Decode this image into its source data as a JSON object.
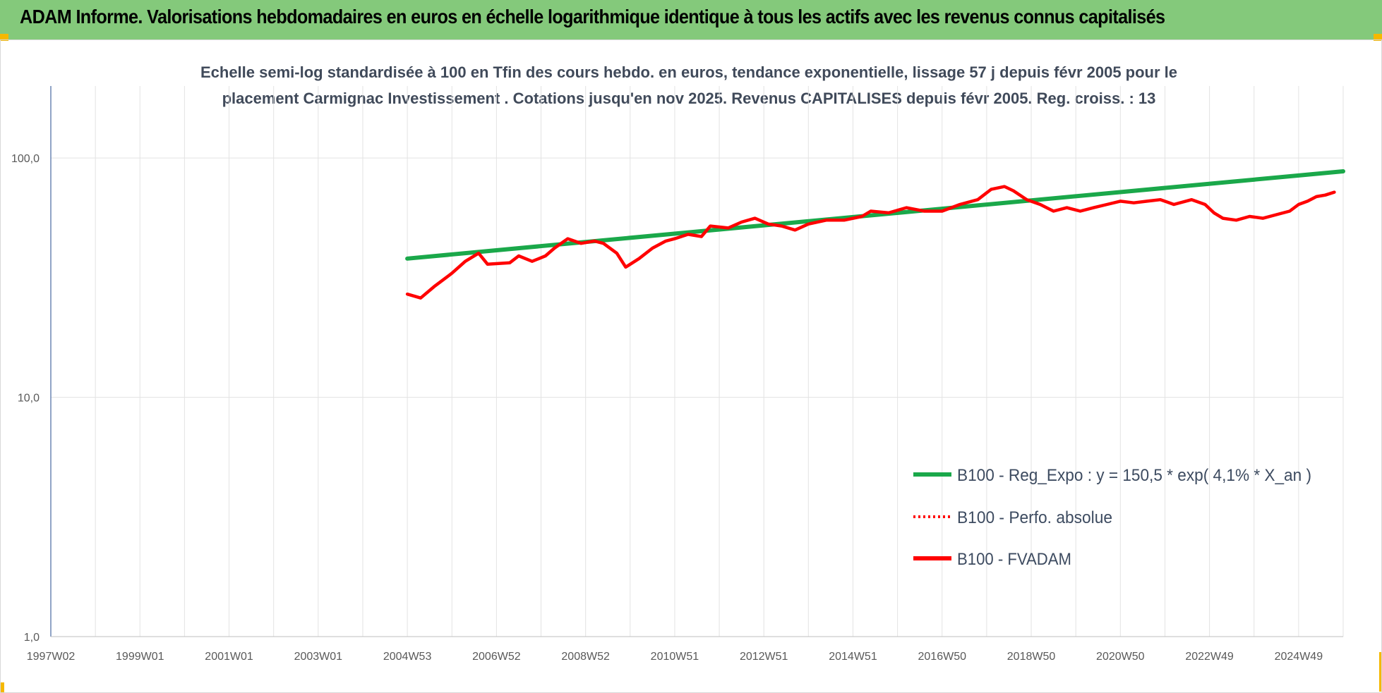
{
  "header": {
    "title": "ADAM Informe. Valorisations hebdomadaires en euros en échelle logarithmique identique à tous les actifs avec les revenus connus capitalisés"
  },
  "colors": {
    "banner": "#84c97b",
    "accent_corner": "#f5b800",
    "regression": "#1aa84a",
    "series": "#ff0000"
  },
  "chart_data": {
    "type": "line",
    "title_lines": [
      "Echelle semi-log standardisée à 100 en Tfin des cours hebdo. en euros, tendance exponentielle, lissage 57 j depuis févr 2005 pour le",
      "placement Carmignac Investissement . Cotations jusqu'en nov 2025. Revenus CAPITALISES depuis févr 2005. Reg. croiss. : 13"
    ],
    "y_scale": "log",
    "ylim": [
      1,
      200
    ],
    "y_ticks": [
      "1,0",
      "10,0",
      "100,0"
    ],
    "xlim": [
      1997.0,
      2026.0
    ],
    "x_ticks": [
      {
        "label": "1997W02",
        "year": 1997.0
      },
      {
        "label": "1999W01",
        "year": 1999.0
      },
      {
        "label": "2001W01",
        "year": 2001.0
      },
      {
        "label": "2003W01",
        "year": 2003.0
      },
      {
        "label": "2004W53",
        "year": 2005.0
      },
      {
        "label": "2006W52",
        "year": 2007.0
      },
      {
        "label": "2008W52",
        "year": 2009.0
      },
      {
        "label": "2010W51",
        "year": 2011.0
      },
      {
        "label": "2012W51",
        "year": 2013.0
      },
      {
        "label": "2014W51",
        "year": 2015.0
      },
      {
        "label": "2016W50",
        "year": 2017.0
      },
      {
        "label": "2018W50",
        "year": 2019.0
      },
      {
        "label": "2020W50",
        "year": 2021.0
      },
      {
        "label": "2022W49",
        "year": 2023.0
      },
      {
        "label": "2024W49",
        "year": 2025.0
      }
    ],
    "grid": true,
    "legend_position": "bottom-right",
    "series": [
      {
        "name": "B100 - Reg_Expo : y = 150,5 * exp( 4,1% *  X_an )",
        "style": "solid",
        "color": "#1aa84a",
        "points": [
          [
            2005.0,
            38
          ],
          [
            2026.0,
            88
          ]
        ]
      },
      {
        "name": "B100 - Perfo. absolue",
        "style": "dotted",
        "color": "#ff0000",
        "points": []
      },
      {
        "name": "B100 - FVADAM",
        "style": "solid",
        "color": "#ff0000",
        "points": [
          [
            2005.0,
            27
          ],
          [
            2005.3,
            26
          ],
          [
            2005.6,
            29
          ],
          [
            2006.0,
            33
          ],
          [
            2006.3,
            37
          ],
          [
            2006.6,
            40
          ],
          [
            2006.8,
            36
          ],
          [
            2007.3,
            36.5
          ],
          [
            2007.5,
            39
          ],
          [
            2007.8,
            37
          ],
          [
            2008.1,
            39
          ],
          [
            2008.3,
            42
          ],
          [
            2008.6,
            46
          ],
          [
            2008.9,
            44
          ],
          [
            2009.2,
            45
          ],
          [
            2009.4,
            44
          ],
          [
            2009.7,
            40
          ],
          [
            2009.9,
            35
          ],
          [
            2010.2,
            38
          ],
          [
            2010.5,
            42
          ],
          [
            2010.8,
            45
          ],
          [
            2011.0,
            46
          ],
          [
            2011.3,
            48
          ],
          [
            2011.6,
            47
          ],
          [
            2011.8,
            52
          ],
          [
            2012.2,
            51
          ],
          [
            2012.5,
            54
          ],
          [
            2012.8,
            56
          ],
          [
            2013.1,
            53
          ],
          [
            2013.4,
            52
          ],
          [
            2013.7,
            50
          ],
          [
            2014.0,
            53
          ],
          [
            2014.4,
            55
          ],
          [
            2014.8,
            55
          ],
          [
            2015.2,
            57
          ],
          [
            2015.4,
            60
          ],
          [
            2015.8,
            59
          ],
          [
            2016.2,
            62
          ],
          [
            2016.6,
            60
          ],
          [
            2017.0,
            60
          ],
          [
            2017.4,
            64
          ],
          [
            2017.8,
            67
          ],
          [
            2018.1,
            74
          ],
          [
            2018.4,
            76
          ],
          [
            2018.6,
            73
          ],
          [
            2018.9,
            67
          ],
          [
            2019.2,
            64
          ],
          [
            2019.5,
            60
          ],
          [
            2019.8,
            62
          ],
          [
            2020.1,
            60
          ],
          [
            2020.4,
            62
          ],
          [
            2020.7,
            64
          ],
          [
            2021.0,
            66
          ],
          [
            2021.3,
            65
          ],
          [
            2021.6,
            66
          ],
          [
            2021.9,
            67
          ],
          [
            2022.2,
            64
          ],
          [
            2022.6,
            67
          ],
          [
            2022.9,
            64
          ],
          [
            2023.1,
            59
          ],
          [
            2023.3,
            56
          ],
          [
            2023.6,
            55
          ],
          [
            2023.9,
            57
          ],
          [
            2024.2,
            56
          ],
          [
            2024.5,
            58
          ],
          [
            2024.8,
            60
          ],
          [
            2025.0,
            64
          ],
          [
            2025.2,
            66
          ],
          [
            2025.4,
            69
          ],
          [
            2025.6,
            70
          ],
          [
            2025.8,
            72
          ]
        ]
      }
    ]
  }
}
